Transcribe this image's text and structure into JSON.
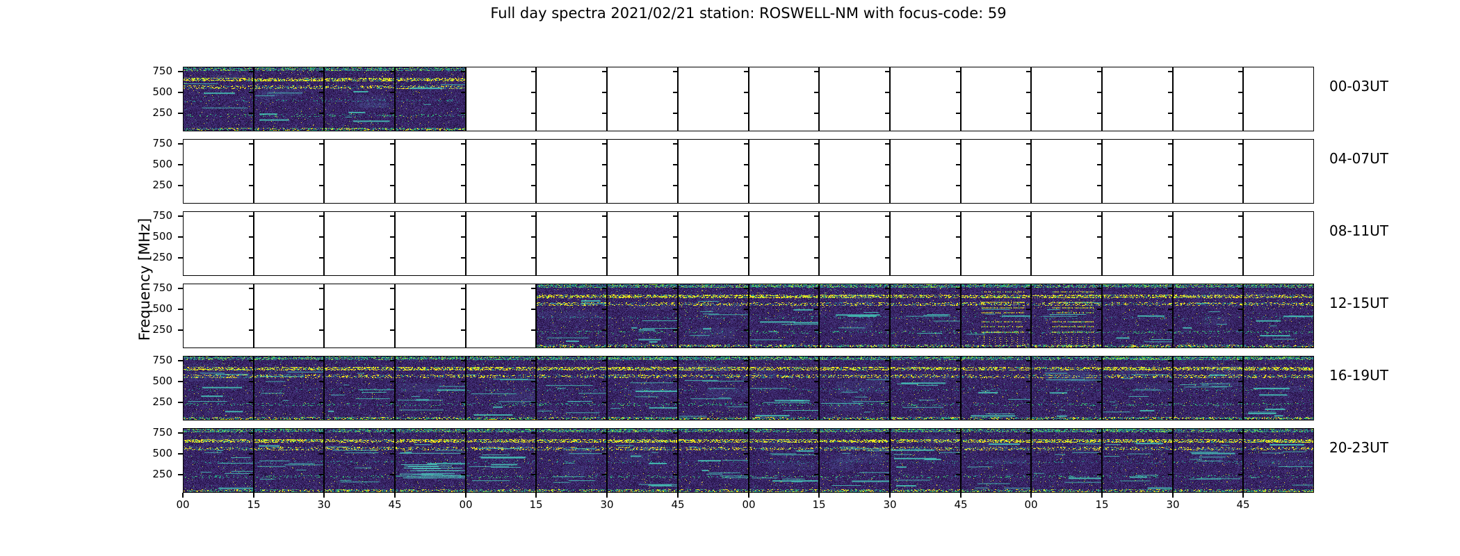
{
  "chart_data": {
    "type": "heatmap",
    "title": "Full day spectra 2021/02/21 station: ROSWELL-NM with focus-code: 59",
    "date": "2021/02/21",
    "station": "ROSWELL-NM",
    "focus_code": "59",
    "ylabel": "Frequency [MHz]",
    "ytick_labels": [
      "750",
      "500",
      "250"
    ],
    "xtick_labels": [
      "00",
      "15",
      "30",
      "45",
      "00",
      "15",
      "30",
      "45",
      "00",
      "15",
      "30",
      "45",
      "00",
      "15",
      "30",
      "45"
    ],
    "minutes_per_subpanel": 15,
    "subpanels_per_row": 16,
    "hours_per_row": 4,
    "legend_position": "none",
    "grid": false,
    "rows": [
      {
        "label": "00-03UT",
        "filled_quarters": [
          0,
          1,
          2,
          3
        ]
      },
      {
        "label": "04-07UT",
        "filled_quarters": []
      },
      {
        "label": "08-11UT",
        "filled_quarters": []
      },
      {
        "label": "12-15UT",
        "filled_quarters": [
          5,
          6,
          7,
          8,
          9,
          10,
          11,
          12,
          13,
          14,
          15
        ]
      },
      {
        "label": "16-19UT",
        "filled_quarters": [
          0,
          1,
          2,
          3,
          4,
          5,
          6,
          7,
          8,
          9,
          10,
          11,
          12,
          13,
          14,
          15
        ]
      },
      {
        "label": "20-23UT",
        "filled_quarters": [
          0,
          1,
          2,
          3,
          4,
          5,
          6,
          7,
          8,
          9,
          10,
          11,
          12,
          13,
          14,
          15
        ]
      }
    ],
    "features": {
      "dotted_burst_row": 3,
      "dotted_burst_quarters": [
        11,
        12
      ],
      "interference_lines_row": 5,
      "interference_lines_quarter": 3
    },
    "palette": {
      "figure_background": "#ffffff",
      "axis_color": "#000000",
      "colormap": "viridis",
      "empty_panel": "#ffffff",
      "spectra_base_colors": [
        "#2b1850",
        "#331e5e",
        "#3b2769",
        "#432f78",
        "#261244",
        "#3f2b73"
      ],
      "spectra_bright_colors": [
        "#26968c",
        "#3cbb6c",
        "#f4e41c",
        "#a0da39",
        "#3b528b"
      ]
    }
  }
}
